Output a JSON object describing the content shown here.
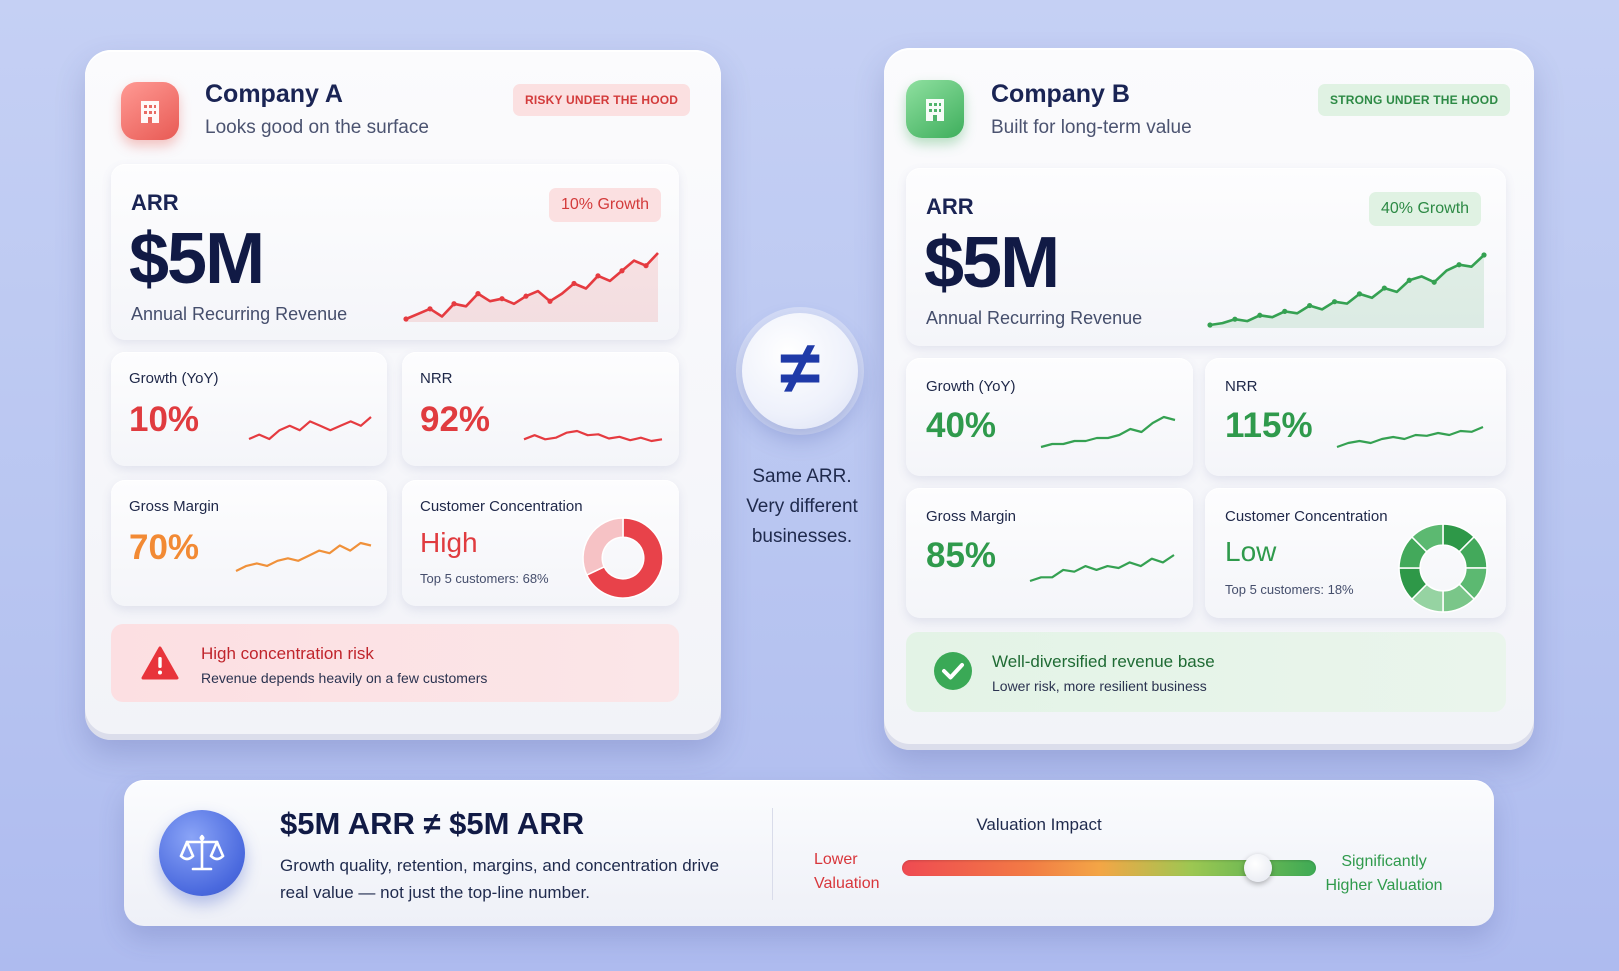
{
  "colors": {
    "red": "#e03b3f",
    "orange": "#f28a34",
    "green": "#2f9a4c",
    "navy": "#111a45",
    "blue": "#1f3aa8"
  },
  "company_a": {
    "name": "Company A",
    "subtitle": "Looks good on the surface",
    "tag": "RISKY UNDER THE HOOD",
    "icon": "building-icon",
    "arr": {
      "label": "ARR",
      "value": "$5M",
      "sub": "Annual Recurring Revenue",
      "badge": "10% Growth",
      "series": [
        12,
        14,
        16,
        13,
        18,
        17,
        22,
        19,
        20,
        18,
        21,
        23,
        19,
        22,
        26,
        24,
        29,
        27,
        31,
        35,
        33,
        38
      ]
    },
    "growth": {
      "label": "Growth (YoY)",
      "value": "10%",
      "series": [
        3,
        4,
        3,
        5,
        6,
        5,
        7,
        6,
        5,
        6,
        7,
        6,
        8
      ]
    },
    "nrr": {
      "label": "NRR",
      "value": "92%",
      "series": [
        5,
        5.5,
        5,
        5.2,
        5.8,
        6,
        5.5,
        5.6,
        5.1,
        5.3,
        4.9,
        5.2,
        4.8,
        5
      ]
    },
    "gross_margin": {
      "label": "Gross Margin",
      "value": "70%",
      "series": [
        2,
        3,
        3.5,
        3,
        4,
        4.5,
        4,
        5,
        6,
        5.5,
        7,
        6,
        7.5,
        7
      ]
    },
    "concentration": {
      "label": "Customer Concentration",
      "value": "High",
      "note": "Top 5 customers: 68%",
      "top5_share": 0.68
    },
    "alert": {
      "icon": "warning-icon",
      "title": "High concentration risk",
      "text": "Revenue depends heavily on a few customers"
    }
  },
  "company_b": {
    "name": "Company B",
    "subtitle": "Built for long-term value",
    "tag": "STRONG UNDER THE HOOD",
    "icon": "building-icon",
    "arr": {
      "label": "ARR",
      "value": "$5M",
      "sub": "Annual Recurring Revenue",
      "badge": "40% Growth",
      "series": [
        8,
        9,
        11,
        10,
        13,
        12,
        15,
        14,
        18,
        16,
        20,
        19,
        24,
        22,
        27,
        25,
        31,
        33,
        30,
        36,
        39,
        38,
        44
      ]
    },
    "growth": {
      "label": "Growth (YoY)",
      "value": "40%",
      "series": [
        2,
        3,
        3,
        4,
        4,
        5,
        5,
        6,
        8,
        7,
        10,
        12,
        11
      ]
    },
    "nrr": {
      "label": "NRR",
      "value": "115%",
      "series": [
        2,
        3,
        3.5,
        3,
        4,
        4.5,
        4,
        5,
        4.8,
        5.5,
        5,
        6,
        5.8,
        7
      ]
    },
    "gross_margin": {
      "label": "Gross Margin",
      "value": "85%",
      "series": [
        2,
        3,
        3,
        5,
        4.5,
        6,
        5,
        6,
        5.5,
        7,
        6,
        8,
        7,
        9
      ]
    },
    "concentration": {
      "label": "Customer Concentration",
      "value": "Low",
      "note": "Top 5 customers: 18%",
      "top5_share": 0.18
    },
    "alert": {
      "icon": "check-icon",
      "title": "Well-diversified revenue base",
      "text": "Lower risk, more resilient business"
    }
  },
  "center": {
    "symbol": "≠",
    "caption": [
      "Same ARR.",
      "Very different",
      "businesses."
    ]
  },
  "footer": {
    "icon": "scale-icon",
    "headline": "$5M ARR ≠ $5M ARR",
    "explain": "Growth quality, retention, margins, and concentration drive real value — not just the top-line number.",
    "impact_title": "Valuation Impact",
    "low": [
      "Lower",
      "Valuation"
    ],
    "high": [
      "Significantly",
      "Higher Valuation"
    ],
    "level": 0.86
  }
}
